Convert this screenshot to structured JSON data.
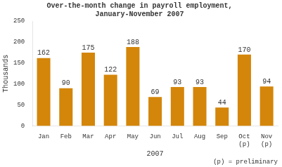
{
  "chart_data": {
    "type": "bar",
    "title": "Over-the-month change in payroll employment,\nJanuary-November 2007",
    "categories": [
      "Jan",
      "Feb",
      "Mar",
      "Apr",
      "May",
      "Jun",
      "Jul",
      "Aug",
      "Sep",
      "Oct\n(p)",
      "Nov\n(p)"
    ],
    "values": [
      162,
      90,
      175,
      122,
      188,
      69,
      93,
      93,
      44,
      170,
      94
    ],
    "color": "#D4860A",
    "ylabel": "Thousands",
    "xlabel": "2007",
    "annotations": [
      "(p) = preliminary"
    ],
    "ylim": [
      0,
      250
    ],
    "yticks": [
      0,
      50,
      100,
      150,
      200,
      250
    ],
    "grid": false,
    "data_labels": true
  }
}
